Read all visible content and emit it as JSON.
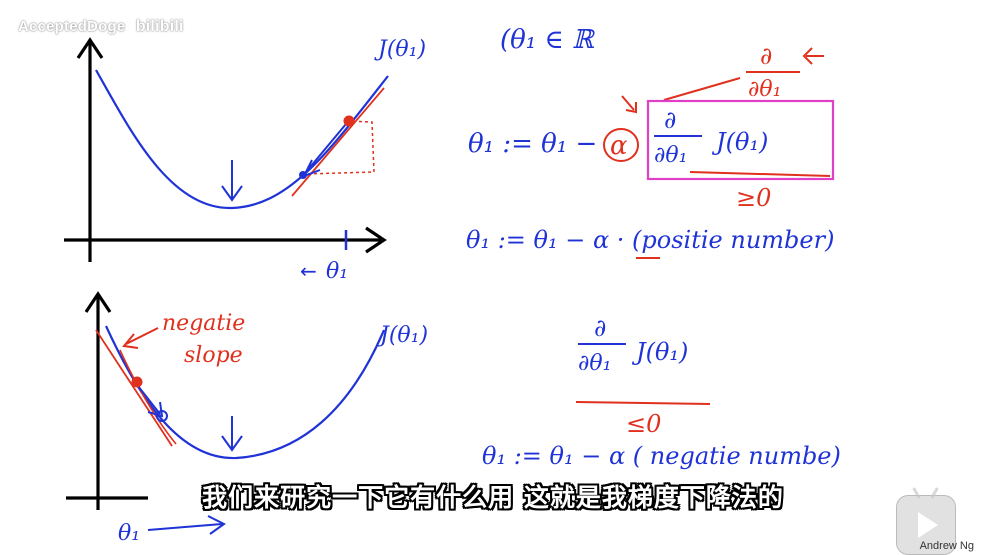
{
  "watermark": {
    "channel": "AcceptedDoge",
    "site": "bilibili"
  },
  "subtitle": "我们来研究一下它有什么用 这就是我梯度下降法的",
  "author": "Andrew Ng",
  "colors": {
    "blue": "#1f33d6",
    "red": "#e0301e",
    "magenta": "#e040c8"
  },
  "top_plot": {
    "function_label": "J(θ₁)",
    "axis_label": "θ₁",
    "arrow_label": "←"
  },
  "bottom_plot": {
    "function_label": "J(θ₁)",
    "annotation_line1": "negatie",
    "annotation_line2": "slope",
    "axis_label": "θ₁"
  },
  "notes": {
    "domain": "(θ₁ ∈ ℝ",
    "update_rule_lhs": "θ₁ := θ₁ −",
    "alpha": "α",
    "derivative_num": "∂",
    "derivative_den": "∂θ₁",
    "cost": "J(θ₁)",
    "red_num": "∂",
    "red_den": "∂θ₁",
    "geq_zero": "≥0",
    "positive_rule": "θ₁ := θ₁ −  α · (positie  number)",
    "deriv2_num": "∂",
    "deriv2_den": "∂θ₁",
    "deriv2_cost": "J(θ₁)",
    "leq_zero": "≤0",
    "negative_rule": "θ₁ := θ₁ − α ( negatie  numbe)"
  },
  "player": {
    "icon": "play-icon"
  }
}
